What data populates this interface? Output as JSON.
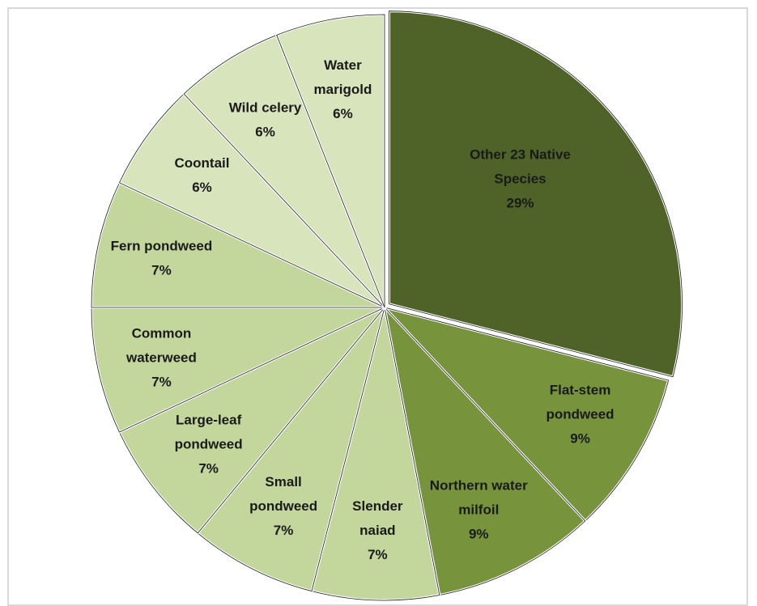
{
  "chart_data": {
    "type": "pie",
    "title": "",
    "slices": [
      {
        "label": "Other 23 Native Species",
        "value": 29,
        "text": "29%",
        "color": "#4f6228"
      },
      {
        "label": "Flat-stem pondweed",
        "value": 9,
        "text": "9%",
        "color": "#77933c"
      },
      {
        "label": "Northern water milfoil",
        "value": 9,
        "text": "9%",
        "color": "#77933c"
      },
      {
        "label": "Slender naiad",
        "value": 7,
        "text": "7%",
        "color": "#c3d69b"
      },
      {
        "label": "Small pondweed",
        "value": 7,
        "text": "7%",
        "color": "#c3d69b"
      },
      {
        "label": "Large-leaf pondweed",
        "value": 7,
        "text": "7%",
        "color": "#c3d69b"
      },
      {
        "label": "Common waterweed",
        "value": 7,
        "text": "7%",
        "color": "#c3d69b"
      },
      {
        "label": "Fern pondweed",
        "value": 7,
        "text": "7%",
        "color": "#c3d69b"
      },
      {
        "label": "Coontail",
        "value": 6,
        "text": "6%",
        "color": "#d7e4bc"
      },
      {
        "label": "Wild celery",
        "value": 6,
        "text": "6%",
        "color": "#d7e4bc"
      },
      {
        "label": "Water marigold",
        "value": 6,
        "text": "6%",
        "color": "#d7e4bc"
      }
    ]
  }
}
